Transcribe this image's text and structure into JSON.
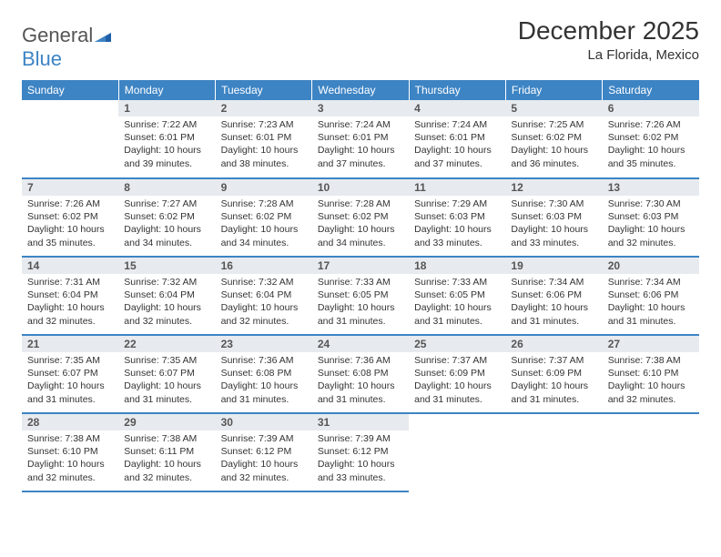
{
  "brand": {
    "part1": "General",
    "part2": "Blue"
  },
  "title": "December 2025",
  "location": "La Florida, Mexico",
  "colors": {
    "header_bg": "#3d84c4",
    "header_text": "#ffffff",
    "daynum_bg": "#e7ebef",
    "row_border": "#3d84c4",
    "page_bg": "#ffffff",
    "text": "#333333"
  },
  "weekdays": [
    "Sunday",
    "Monday",
    "Tuesday",
    "Wednesday",
    "Thursday",
    "Friday",
    "Saturday"
  ],
  "weeks": [
    [
      {
        "day": "",
        "sunrise": "",
        "sunset": "",
        "daylight": "",
        "empty": true
      },
      {
        "day": "1",
        "sunrise": "Sunrise: 7:22 AM",
        "sunset": "Sunset: 6:01 PM",
        "daylight": "Daylight: 10 hours and 39 minutes."
      },
      {
        "day": "2",
        "sunrise": "Sunrise: 7:23 AM",
        "sunset": "Sunset: 6:01 PM",
        "daylight": "Daylight: 10 hours and 38 minutes."
      },
      {
        "day": "3",
        "sunrise": "Sunrise: 7:24 AM",
        "sunset": "Sunset: 6:01 PM",
        "daylight": "Daylight: 10 hours and 37 minutes."
      },
      {
        "day": "4",
        "sunrise": "Sunrise: 7:24 AM",
        "sunset": "Sunset: 6:01 PM",
        "daylight": "Daylight: 10 hours and 37 minutes."
      },
      {
        "day": "5",
        "sunrise": "Sunrise: 7:25 AM",
        "sunset": "Sunset: 6:02 PM",
        "daylight": "Daylight: 10 hours and 36 minutes."
      },
      {
        "day": "6",
        "sunrise": "Sunrise: 7:26 AM",
        "sunset": "Sunset: 6:02 PM",
        "daylight": "Daylight: 10 hours and 35 minutes."
      }
    ],
    [
      {
        "day": "7",
        "sunrise": "Sunrise: 7:26 AM",
        "sunset": "Sunset: 6:02 PM",
        "daylight": "Daylight: 10 hours and 35 minutes."
      },
      {
        "day": "8",
        "sunrise": "Sunrise: 7:27 AM",
        "sunset": "Sunset: 6:02 PM",
        "daylight": "Daylight: 10 hours and 34 minutes."
      },
      {
        "day": "9",
        "sunrise": "Sunrise: 7:28 AM",
        "sunset": "Sunset: 6:02 PM",
        "daylight": "Daylight: 10 hours and 34 minutes."
      },
      {
        "day": "10",
        "sunrise": "Sunrise: 7:28 AM",
        "sunset": "Sunset: 6:02 PM",
        "daylight": "Daylight: 10 hours and 34 minutes."
      },
      {
        "day": "11",
        "sunrise": "Sunrise: 7:29 AM",
        "sunset": "Sunset: 6:03 PM",
        "daylight": "Daylight: 10 hours and 33 minutes."
      },
      {
        "day": "12",
        "sunrise": "Sunrise: 7:30 AM",
        "sunset": "Sunset: 6:03 PM",
        "daylight": "Daylight: 10 hours and 33 minutes."
      },
      {
        "day": "13",
        "sunrise": "Sunrise: 7:30 AM",
        "sunset": "Sunset: 6:03 PM",
        "daylight": "Daylight: 10 hours and 32 minutes."
      }
    ],
    [
      {
        "day": "14",
        "sunrise": "Sunrise: 7:31 AM",
        "sunset": "Sunset: 6:04 PM",
        "daylight": "Daylight: 10 hours and 32 minutes."
      },
      {
        "day": "15",
        "sunrise": "Sunrise: 7:32 AM",
        "sunset": "Sunset: 6:04 PM",
        "daylight": "Daylight: 10 hours and 32 minutes."
      },
      {
        "day": "16",
        "sunrise": "Sunrise: 7:32 AM",
        "sunset": "Sunset: 6:04 PM",
        "daylight": "Daylight: 10 hours and 32 minutes."
      },
      {
        "day": "17",
        "sunrise": "Sunrise: 7:33 AM",
        "sunset": "Sunset: 6:05 PM",
        "daylight": "Daylight: 10 hours and 31 minutes."
      },
      {
        "day": "18",
        "sunrise": "Sunrise: 7:33 AM",
        "sunset": "Sunset: 6:05 PM",
        "daylight": "Daylight: 10 hours and 31 minutes."
      },
      {
        "day": "19",
        "sunrise": "Sunrise: 7:34 AM",
        "sunset": "Sunset: 6:06 PM",
        "daylight": "Daylight: 10 hours and 31 minutes."
      },
      {
        "day": "20",
        "sunrise": "Sunrise: 7:34 AM",
        "sunset": "Sunset: 6:06 PM",
        "daylight": "Daylight: 10 hours and 31 minutes."
      }
    ],
    [
      {
        "day": "21",
        "sunrise": "Sunrise: 7:35 AM",
        "sunset": "Sunset: 6:07 PM",
        "daylight": "Daylight: 10 hours and 31 minutes."
      },
      {
        "day": "22",
        "sunrise": "Sunrise: 7:35 AM",
        "sunset": "Sunset: 6:07 PM",
        "daylight": "Daylight: 10 hours and 31 minutes."
      },
      {
        "day": "23",
        "sunrise": "Sunrise: 7:36 AM",
        "sunset": "Sunset: 6:08 PM",
        "daylight": "Daylight: 10 hours and 31 minutes."
      },
      {
        "day": "24",
        "sunrise": "Sunrise: 7:36 AM",
        "sunset": "Sunset: 6:08 PM",
        "daylight": "Daylight: 10 hours and 31 minutes."
      },
      {
        "day": "25",
        "sunrise": "Sunrise: 7:37 AM",
        "sunset": "Sunset: 6:09 PM",
        "daylight": "Daylight: 10 hours and 31 minutes."
      },
      {
        "day": "26",
        "sunrise": "Sunrise: 7:37 AM",
        "sunset": "Sunset: 6:09 PM",
        "daylight": "Daylight: 10 hours and 31 minutes."
      },
      {
        "day": "27",
        "sunrise": "Sunrise: 7:38 AM",
        "sunset": "Sunset: 6:10 PM",
        "daylight": "Daylight: 10 hours and 32 minutes."
      }
    ],
    [
      {
        "day": "28",
        "sunrise": "Sunrise: 7:38 AM",
        "sunset": "Sunset: 6:10 PM",
        "daylight": "Daylight: 10 hours and 32 minutes."
      },
      {
        "day": "29",
        "sunrise": "Sunrise: 7:38 AM",
        "sunset": "Sunset: 6:11 PM",
        "daylight": "Daylight: 10 hours and 32 minutes."
      },
      {
        "day": "30",
        "sunrise": "Sunrise: 7:39 AM",
        "sunset": "Sunset: 6:12 PM",
        "daylight": "Daylight: 10 hours and 32 minutes."
      },
      {
        "day": "31",
        "sunrise": "Sunrise: 7:39 AM",
        "sunset": "Sunset: 6:12 PM",
        "daylight": "Daylight: 10 hours and 33 minutes."
      },
      {
        "day": "",
        "sunrise": "",
        "sunset": "",
        "daylight": "",
        "empty": true
      },
      {
        "day": "",
        "sunrise": "",
        "sunset": "",
        "daylight": "",
        "empty": true
      },
      {
        "day": "",
        "sunrise": "",
        "sunset": "",
        "daylight": "",
        "empty": true
      }
    ]
  ]
}
